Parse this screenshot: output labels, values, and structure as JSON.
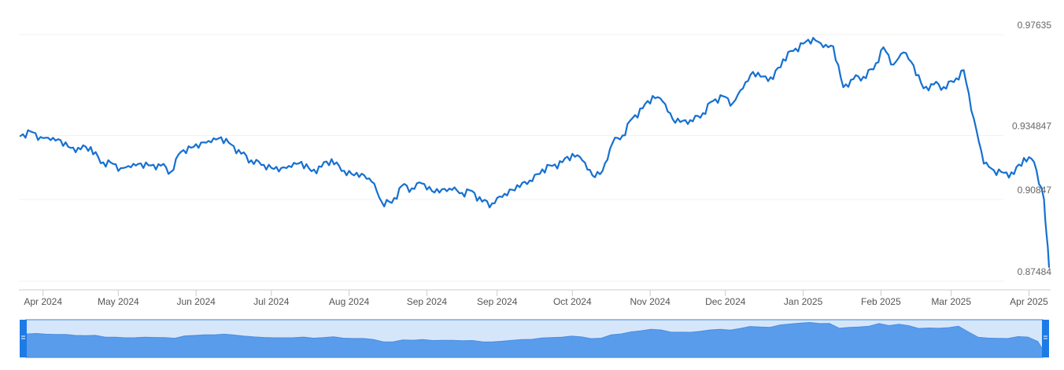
{
  "chart_data": {
    "type": "line",
    "title": "",
    "xlabel": "",
    "ylabel": "",
    "colors": {
      "line": "#1670d0",
      "navigator_fill": "#5a9cec",
      "navigator_bg": "#d6e6fa",
      "grid": "#f0f0f0"
    },
    "y_ticks": [
      "0.97635",
      "0.934847",
      "0.90847",
      "0.87484"
    ],
    "y_tick_values": [
      0.97635,
      0.934847,
      0.90847,
      0.87484
    ],
    "ylim": [
      0.87484,
      0.97635
    ],
    "x_ticks": [
      "Apr 2024",
      "May 2024",
      "Jun 2024",
      "Jul 2024",
      "Aug 2024",
      "Sep 2024",
      "Sep 2024",
      "Oct 2024",
      "Nov 2024",
      "Dec 2024",
      "Jan 2025",
      "Feb 2025",
      "Mar 2025",
      "Apr 2025"
    ],
    "x_tick_days": [
      9,
      39,
      70,
      100,
      131,
      162,
      190,
      220,
      251,
      281,
      312,
      343,
      371,
      402
    ],
    "x_range": [
      0,
      410
    ],
    "grid": true,
    "legend": "none",
    "series": [
      {
        "x": [
          0,
          4,
          8,
          12,
          16,
          20,
          24,
          28,
          32,
          36,
          40,
          44,
          48,
          52,
          56,
          60,
          64,
          68,
          72,
          76,
          80,
          84,
          88,
          92,
          96,
          100,
          104,
          108,
          112,
          116,
          120,
          124,
          128,
          132,
          136,
          140,
          144,
          148,
          152,
          156,
          160,
          164,
          168,
          172,
          176,
          180,
          184,
          188,
          192,
          196,
          200,
          204,
          208,
          212,
          216,
          220,
          224,
          228,
          232,
          236,
          240,
          244,
          248,
          252,
          256,
          260,
          264,
          268,
          272,
          276,
          280,
          284,
          288,
          292,
          296,
          300,
          304,
          308,
          312,
          316,
          320,
          324,
          328,
          332,
          336,
          340,
          344,
          348,
          352,
          356,
          360,
          364,
          368,
          372,
          376,
          380,
          384,
          388,
          392,
          396,
          400,
          404,
          408,
          410
        ],
        "y": [
          0.9346,
          0.9365,
          0.9342,
          0.9329,
          0.9329,
          0.9297,
          0.9291,
          0.9301,
          0.9234,
          0.9237,
          0.9214,
          0.9217,
          0.9233,
          0.9225,
          0.9224,
          0.9199,
          0.9281,
          0.9298,
          0.9319,
          0.932,
          0.9341,
          0.9311,
          0.9273,
          0.9246,
          0.9227,
          0.9215,
          0.9215,
          0.9218,
          0.924,
          0.9201,
          0.9219,
          0.9251,
          0.9202,
          0.919,
          0.9191,
          0.9158,
          0.9075,
          0.9071,
          0.9141,
          0.9131,
          0.9151,
          0.912,
          0.9127,
          0.9124,
          0.9112,
          0.912,
          0.9076,
          0.9069,
          0.9095,
          0.9125,
          0.9153,
          0.916,
          0.9209,
          0.9223,
          0.9238,
          0.9273,
          0.9245,
          0.9184,
          0.9202,
          0.9317,
          0.9348,
          0.942,
          0.946,
          0.9511,
          0.9488,
          0.9415,
          0.9409,
          0.9406,
          0.944,
          0.949,
          0.951,
          0.9482,
          0.9542,
          0.961,
          0.9591,
          0.958,
          0.9662,
          0.9696,
          0.9726,
          0.975,
          0.9711,
          0.9715,
          0.9547,
          0.958,
          0.959,
          0.962,
          0.9711,
          0.964,
          0.969,
          0.9636,
          0.9542,
          0.9558,
          0.9548,
          0.9568,
          0.9617,
          0.9418,
          0.9232,
          0.9205,
          0.9195,
          0.9189,
          0.9256,
          0.9239,
          0.9085,
          0.8807
        ],
        "name": ""
      }
    ]
  }
}
